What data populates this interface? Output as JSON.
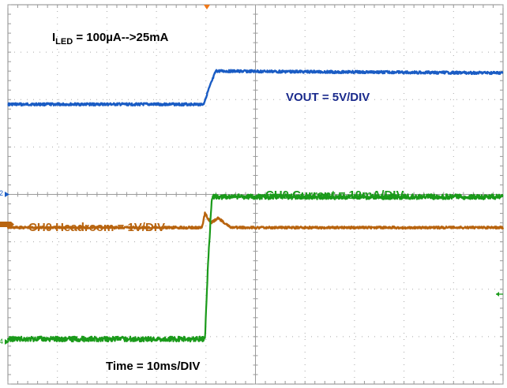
{
  "chart_data": {
    "type": "line",
    "title": "",
    "xlabel": "Time = 10ms/DIV",
    "ylabel": "",
    "x_unit_per_div": "10ms",
    "xlim": [
      0,
      100
    ],
    "divisions": {
      "x": 10,
      "y": 8
    },
    "grid": "dotted",
    "annotations": {
      "iled_prefix": "I",
      "iled_sub": "LED",
      "iled_rest": " = 100µA-->25mA",
      "vout": "VOUT = 5V/DIV",
      "ch0_current": "CH0 Current = 10mA/DIV",
      "ch0_headroom": "CH0 Headroom = 1V/DIV",
      "time": "Time = 10ms/DIV"
    },
    "channel_markers": {
      "vout": "2",
      "current": "4"
    },
    "series": [
      {
        "name": "VOUT",
        "color": "#1a5cc4",
        "scale": "5V/DIV",
        "x": [
          0,
          39.5,
          40.5,
          42,
          100
        ],
        "y_div": [
          5.9,
          5.9,
          6.2,
          6.6,
          6.56
        ]
      },
      {
        "name": "CH0 Headroom",
        "color": "#b8640f",
        "scale": "1V/DIV",
        "x": [
          0,
          39.2,
          39.8,
          41,
          42.5,
          45,
          100
        ],
        "y_div": [
          3.3,
          3.3,
          3.6,
          3.4,
          3.5,
          3.3,
          3.3
        ]
      },
      {
        "name": "CH0 Current",
        "color": "#1a9a1a",
        "scale": "10mA/DIV",
        "x": [
          0,
          39.8,
          40.4,
          41.2,
          100
        ],
        "y_div": [
          0.95,
          0.95,
          2.5,
          3.95,
          3.95
        ]
      }
    ]
  }
}
